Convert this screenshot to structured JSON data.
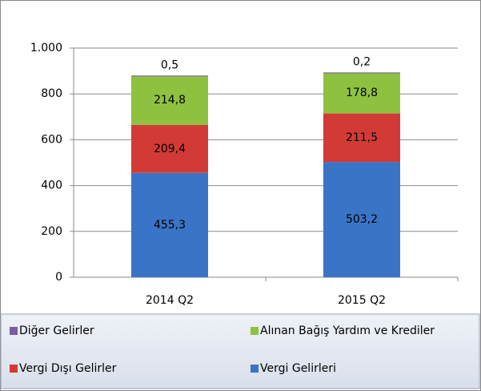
{
  "chart_data": {
    "type": "bar",
    "stacked": true,
    "categories": [
      "2014 Q2",
      "2015 Q2"
    ],
    "series": [
      {
        "name": "Vergi Gelirleri",
        "color": "#3a74c6",
        "values": [
          455.3,
          503.2
        ],
        "value_labels": [
          "455,3",
          "503,2"
        ]
      },
      {
        "name": "Vergi Dışı Gelirler",
        "color": "#d23b35",
        "values": [
          209.4,
          211.5
        ],
        "value_labels": [
          "209,4",
          "211,5"
        ]
      },
      {
        "name": "Alınan Bağış Yardım ve Krediler",
        "color": "#8fc140",
        "values": [
          214.8,
          178.8
        ],
        "value_labels": [
          "214,8",
          "178,8"
        ]
      },
      {
        "name": "Diğer Gelirler",
        "color": "#7b5ca6",
        "values": [
          0.5,
          0.2
        ],
        "value_labels": [
          "0,5",
          "0,2"
        ]
      }
    ],
    "ylim": [
      0,
      1000
    ],
    "yticks": [
      0,
      200,
      400,
      600,
      800,
      {
        "value": 1000,
        "label": "1.000"
      }
    ],
    "grid": true
  }
}
